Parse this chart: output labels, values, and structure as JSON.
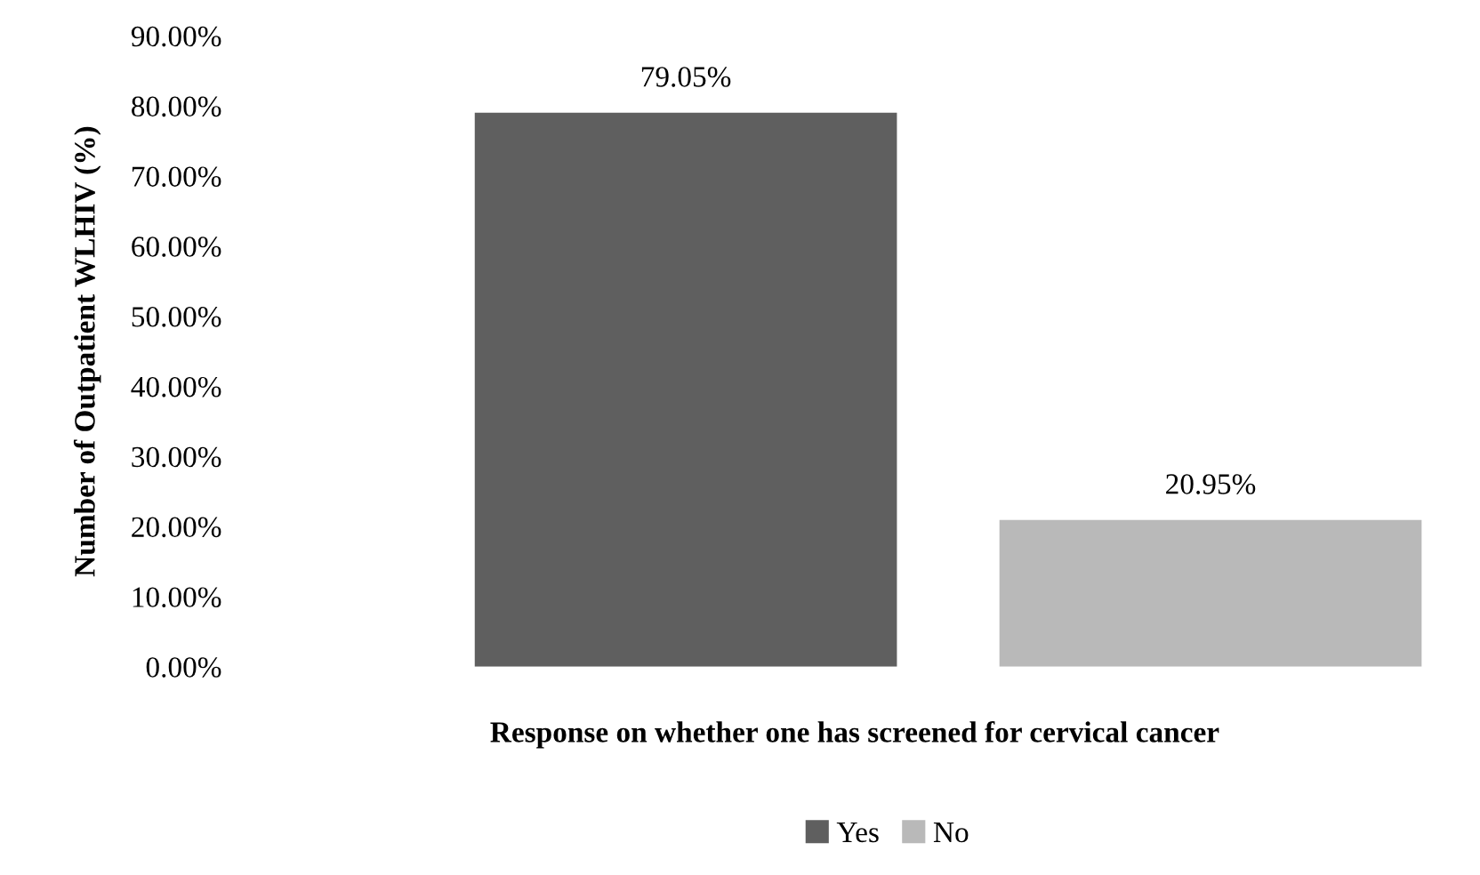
{
  "chart_data": {
    "type": "bar",
    "categories": [
      null
    ],
    "series": [
      {
        "name": "Yes",
        "color": "#5f5f5f",
        "values": [
          79.05
        ],
        "value_labels": [
          "79.05%"
        ]
      },
      {
        "name": "No",
        "color": "#b9b9b9",
        "values": [
          20.95
        ],
        "value_labels": [
          "20.95%"
        ]
      }
    ],
    "xlabel": "Response on whether one has screened for cervical cancer",
    "ylabel": "Number of Outpatient WLHIV (%)",
    "ylim": [
      0,
      90
    ],
    "yticks": [
      {
        "value": 0,
        "label": "0.00%"
      },
      {
        "value": 10,
        "label": "10.00%"
      },
      {
        "value": 20,
        "label": "20.00%"
      },
      {
        "value": 30,
        "label": "30.00%"
      },
      {
        "value": 40,
        "label": "40.00%"
      },
      {
        "value": 50,
        "label": "50.00%"
      },
      {
        "value": 60,
        "label": "60.00%"
      },
      {
        "value": 70,
        "label": "70.00%"
      },
      {
        "value": 80,
        "label": "80.00%"
      },
      {
        "value": 90,
        "label": "90.00%"
      }
    ],
    "tick_labels": "y",
    "grid": false,
    "legend": "bottom"
  }
}
